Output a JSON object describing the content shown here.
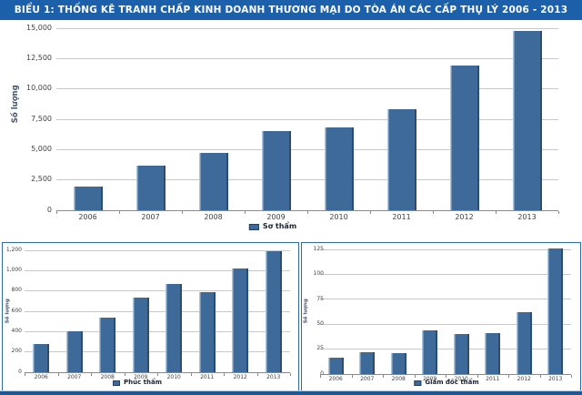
{
  "banner": {
    "title": "BIỂU 1: THỐNG KÊ TRANH CHẤP KINH DOANH THƯƠNG MẠI DO TÒA ÁN CÁC CẤP THỤ LÝ 2006 - 2013"
  },
  "colors": {
    "banner_bg": "#1C60AB",
    "bar_fill": "#3E6A99",
    "bar_edge_light": "#A9C3DD",
    "bar_edge_dark": "#2C4D72",
    "gridline": "#C9C9C9",
    "axis": "#8A8A8A",
    "tick_text": "#3F3F3F",
    "panel_border": "#3069A8",
    "strip_light": "#A9CDEF",
    "strip_dark": "#1D5796"
  },
  "chart_data": [
    {
      "type": "bar",
      "name": "so-tham",
      "title": "BIỂU 1: THỐNG KÊ TRANH CHẤP KINH DOANH THƯƠNG MẠI DO TÒA ÁN CÁC CẤP THỤ LÝ 2006 - 2013",
      "xlabel": "",
      "ylabel": "Số lượng",
      "legend": "Sơ thẩm",
      "legend_position": "bottom",
      "grid": true,
      "categories": [
        "2006",
        "2007",
        "2008",
        "2009",
        "2010",
        "2011",
        "2012",
        "2013"
      ],
      "values": [
        1950,
        3700,
        4700,
        6500,
        6800,
        8350,
        11900,
        14800
      ],
      "ylim": [
        0,
        15000
      ],
      "ymax": 15000,
      "yticks": [
        {
          "value": 0,
          "label": "0"
        },
        {
          "value": 2500,
          "label": "2,500"
        },
        {
          "value": 5000,
          "label": "5,000"
        },
        {
          "value": 7500,
          "label": "7,500"
        },
        {
          "value": 10000,
          "label": "10,000"
        },
        {
          "value": 12500,
          "label": "12,500"
        },
        {
          "value": 15000,
          "label": "15,000"
        }
      ]
    },
    {
      "type": "bar",
      "name": "phuc-tham",
      "title": "",
      "xlabel": "",
      "ylabel": "Số lượng",
      "legend": "Phúc thẩm",
      "legend_position": "bottom",
      "grid": true,
      "categories": [
        "2006",
        "2007",
        "2008",
        "2009",
        "2010",
        "2011",
        "2012",
        "2013"
      ],
      "values": [
        280,
        400,
        535,
        730,
        870,
        785,
        1020,
        1195
      ],
      "ylim": [
        0,
        1200
      ],
      "ymax": 1200,
      "yticks": [
        {
          "value": 0,
          "label": "0"
        },
        {
          "value": 200,
          "label": "200"
        },
        {
          "value": 400,
          "label": "400"
        },
        {
          "value": 600,
          "label": "600"
        },
        {
          "value": 800,
          "label": "800"
        },
        {
          "value": 1000,
          "label": "1,000"
        },
        {
          "value": 1200,
          "label": "1,200"
        }
      ]
    },
    {
      "type": "bar",
      "name": "giam-doc-tham",
      "title": "",
      "xlabel": "",
      "ylabel": "Số lượng",
      "legend": "Giám đốc thẩm",
      "legend_position": "bottom",
      "grid": true,
      "categories": [
        "2006",
        "2007",
        "2008",
        "2009",
        "2010",
        "2011",
        "2012",
        "2013"
      ],
      "values": [
        16,
        22,
        21,
        44,
        40,
        41,
        62,
        126
      ],
      "ylim": [
        0,
        125
      ],
      "ymax": 125,
      "yticks": [
        {
          "value": 0,
          "label": "0"
        },
        {
          "value": 25,
          "label": "25"
        },
        {
          "value": 50,
          "label": "50"
        },
        {
          "value": 75,
          "label": "75"
        },
        {
          "value": 100,
          "label": "100"
        },
        {
          "value": 125,
          "label": "125"
        }
      ]
    }
  ]
}
